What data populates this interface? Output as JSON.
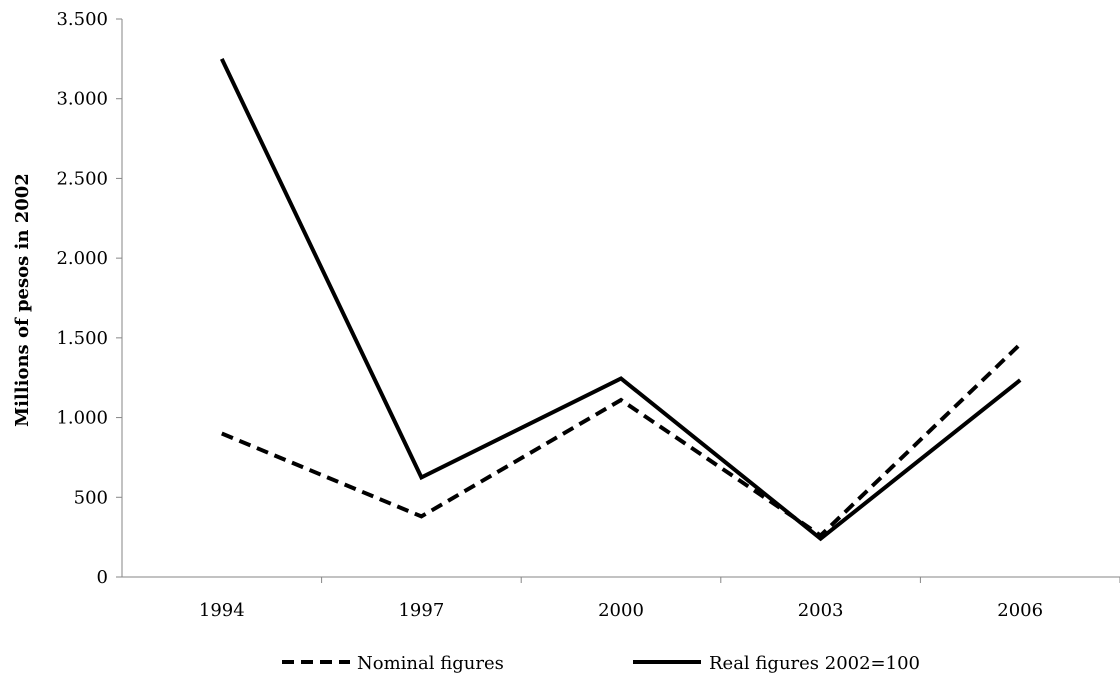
{
  "chart_data": {
    "type": "line",
    "title": "",
    "xlabel": "",
    "ylabel": "Millions of pesos in 2002",
    "categories": [
      "1994",
      "1997",
      "2000",
      "2003",
      "2006"
    ],
    "ylim": [
      0,
      3500
    ],
    "y_ticks": [
      0,
      500,
      1000,
      1500,
      2000,
      2500,
      3000,
      3500
    ],
    "y_tick_labels": [
      "0",
      "500",
      "1.000",
      "1.500",
      "2.000",
      "2.500",
      "3.000",
      "3.500"
    ],
    "grid": false,
    "legend_position": "bottom",
    "series": [
      {
        "name": "Nominal figures",
        "style": "dashed",
        "color": "#000000",
        "values": [
          900,
          380,
          1110,
          260,
          1460
        ]
      },
      {
        "name": "Real figures 2002=100",
        "style": "solid",
        "color": "#000000",
        "values": [
          3250,
          625,
          1245,
          240,
          1235
        ]
      }
    ]
  }
}
